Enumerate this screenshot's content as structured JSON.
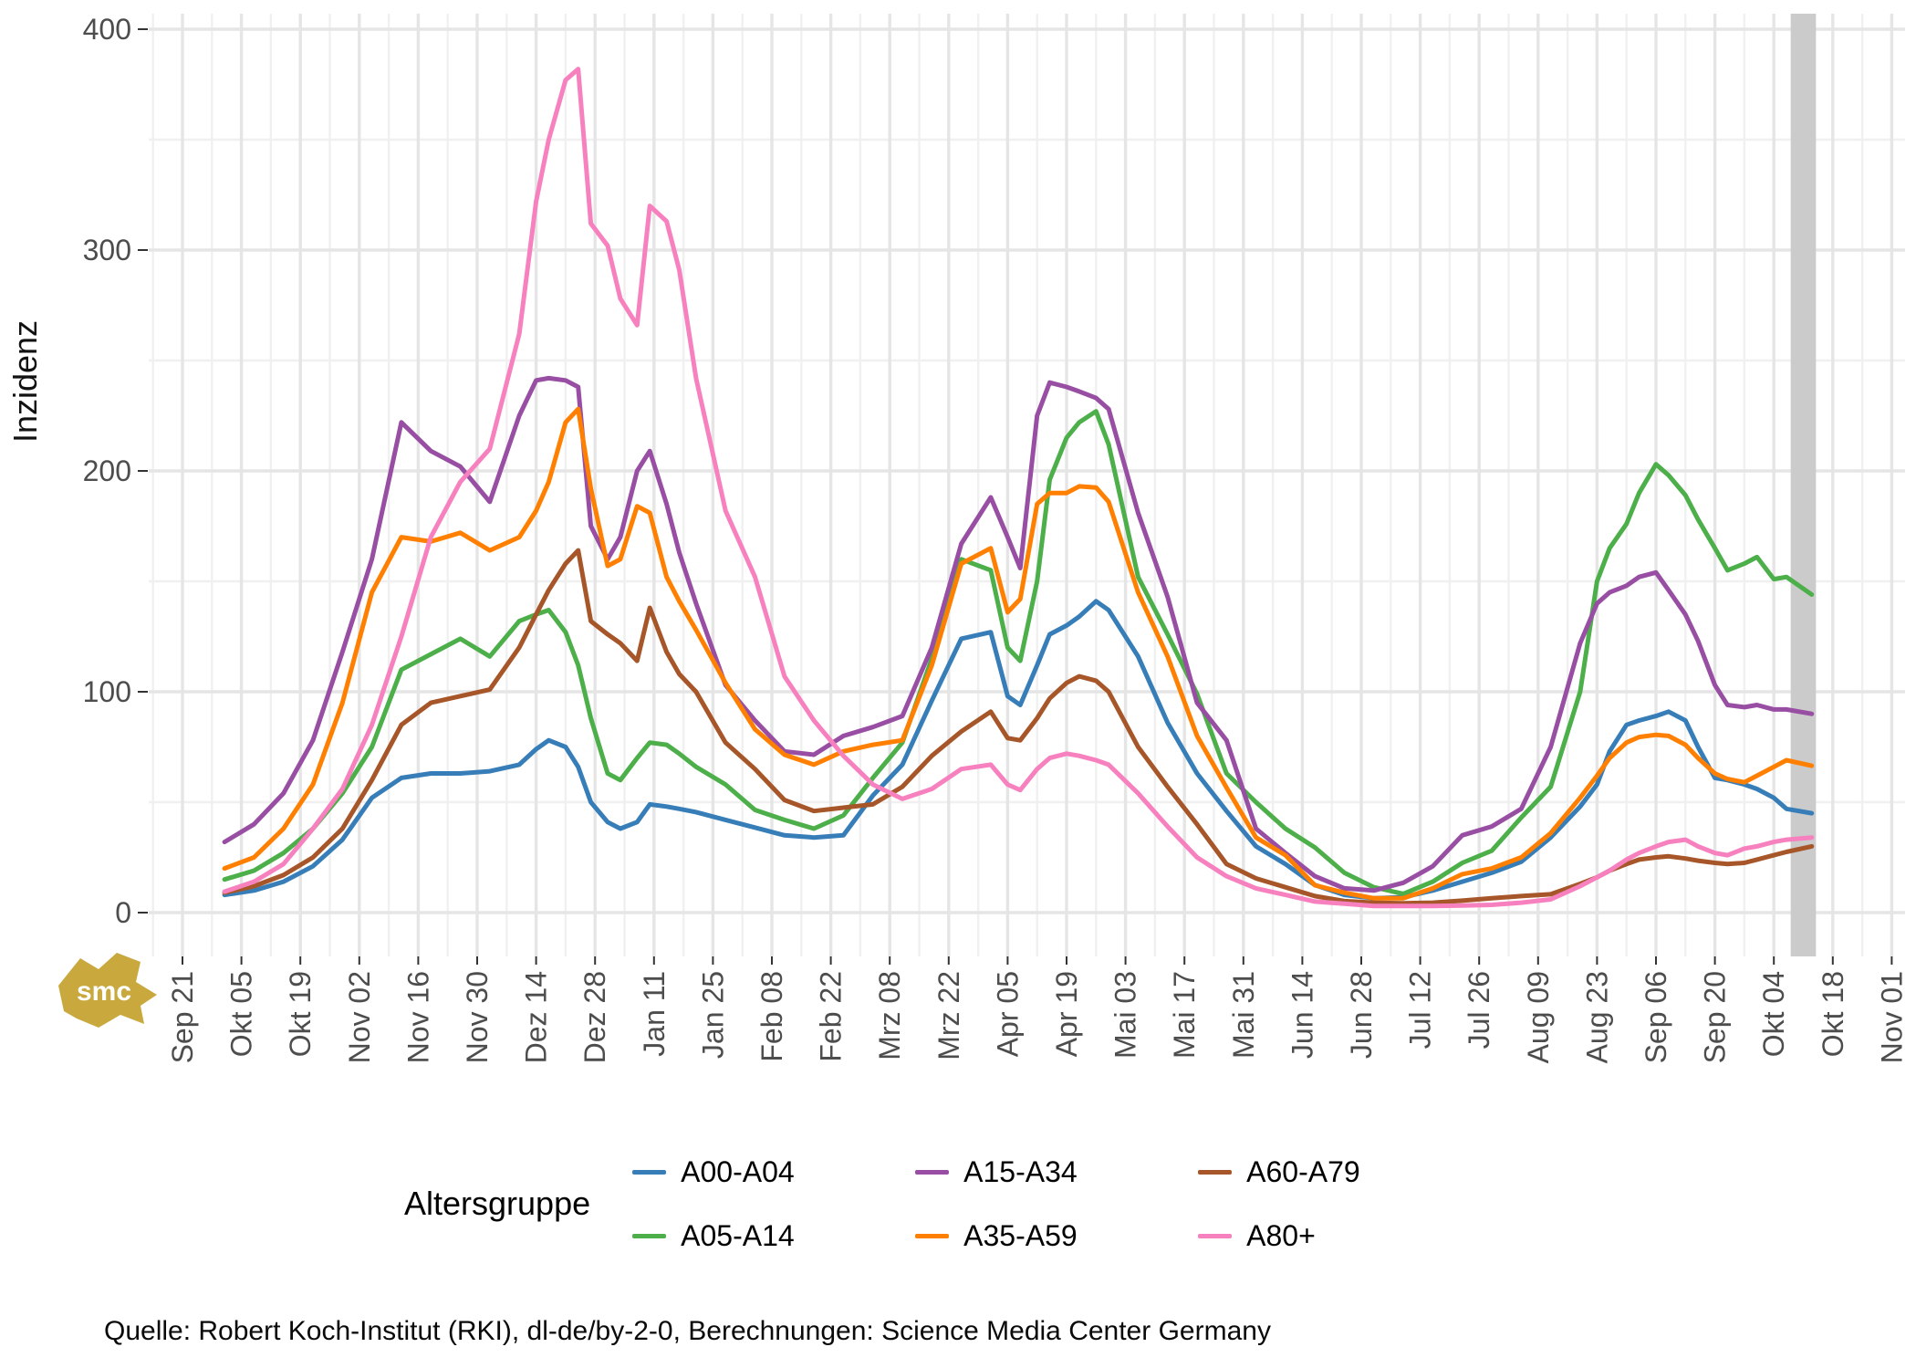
{
  "y_axis": {
    "label": "Inzidenz",
    "ticks": [
      0,
      100,
      200,
      300,
      400
    ]
  },
  "x_axis": {
    "tick_labels": [
      "Sep 21",
      "Okt 05",
      "Okt 19",
      "Nov 02",
      "Nov 16",
      "Nov 30",
      "Dez 14",
      "Dez 28",
      "Jan 11",
      "Jan 25",
      "Feb 08",
      "Feb 22",
      "Mrz 08",
      "Mrz 22",
      "Apr 05",
      "Apr 19",
      "Mai 03",
      "Mai 17",
      "Mai 31",
      "Jun 14",
      "Jun 28",
      "Jul 12",
      "Jul 26",
      "Aug 09",
      "Aug 23",
      "Sep 06",
      "Sep 20",
      "Okt 04",
      "Okt 18",
      "Nov 01"
    ]
  },
  "legend": {
    "title": "Altersgruppe",
    "items": [
      {
        "label": "A00-A04",
        "color": "#377eb8"
      },
      {
        "label": "A05-A14",
        "color": "#4daf4a"
      },
      {
        "label": "A15-A34",
        "color": "#984ea3"
      },
      {
        "label": "A35-A59",
        "color": "#ff7f00"
      },
      {
        "label": "A60-A79",
        "color": "#a65628"
      },
      {
        "label": "A80+",
        "color": "#f781bf"
      }
    ]
  },
  "source": "Quelle: Robert Koch-Institut (RKI), dl-de/by-2-0, Berechnungen: Science Media Center Germany",
  "logo_text": "smc",
  "logo_color": "#c9a93d",
  "highlight_band": {
    "start_day": 382,
    "end_day": 388,
    "color": "#cbcbcb"
  },
  "chart_data": {
    "type": "line",
    "title": "",
    "xlabel": "",
    "ylabel": "Inzidenz",
    "ylim": [
      0,
      400
    ],
    "grid": "on",
    "legend_position": "bottom",
    "x_unit": "days since Sep 21",
    "x_days": [
      10,
      17,
      24,
      31,
      38,
      45,
      52,
      59,
      66,
      73,
      80,
      84,
      87,
      91,
      94,
      97,
      101,
      104,
      108,
      111,
      115,
      118,
      122,
      129,
      136,
      143,
      150,
      157,
      164,
      171,
      178,
      185,
      192,
      196,
      199,
      203,
      206,
      210,
      213,
      217,
      220,
      227,
      234,
      241,
      248,
      255,
      262,
      269,
      276,
      283,
      290,
      297,
      304,
      311,
      318,
      325,
      332,
      336,
      339,
      343,
      346,
      350,
      353,
      357,
      360,
      364,
      367,
      371,
      374,
      378,
      381,
      387
    ],
    "x_dates": [
      "Okt 01",
      "Okt 08",
      "Okt 15",
      "Okt 22",
      "Okt 29",
      "Nov 05",
      "Nov 12",
      "Nov 19",
      "Nov 26",
      "Dez 03",
      "Dez 10",
      "Dez 14",
      "Dez 17",
      "Dez 21",
      "Dez 24",
      "Dez 27",
      "Dez 31",
      "Jan 03",
      "Jan 07",
      "Jan 10",
      "Jan 14",
      "Jan 17",
      "Jan 21",
      "Jan 28",
      "Feb 04",
      "Feb 11",
      "Feb 18",
      "Feb 25",
      "Mrz 04",
      "Mrz 11",
      "Mrz 18",
      "Mrz 25",
      "Apr 01",
      "Apr 05",
      "Apr 08",
      "Apr 12",
      "Apr 15",
      "Apr 19",
      "Apr 22",
      "Apr 26",
      "Apr 29",
      "Mai 06",
      "Mai 13",
      "Mai 20",
      "Mai 27",
      "Jun 03",
      "Jun 10",
      "Jun 17",
      "Jun 24",
      "Jul 01",
      "Jul 08",
      "Jul 15",
      "Jul 22",
      "Jul 29",
      "Aug 05",
      "Aug 12",
      "Aug 19",
      "Aug 23",
      "Aug 26",
      "Aug 30",
      "Sep 02",
      "Sep 06",
      "Sep 09",
      "Sep 13",
      "Sep 16",
      "Sep 20",
      "Sep 23",
      "Sep 27",
      "Sep 30",
      "Okt 04",
      "Okt 07",
      "Okt 13"
    ],
    "series": [
      {
        "name": "A00-A04",
        "color": "#377eb8",
        "values": [
          8,
          10,
          14,
          21,
          33,
          52,
          61,
          63,
          63,
          64,
          67,
          74,
          78,
          75,
          66,
          50,
          41,
          38,
          41,
          49,
          48,
          47,
          45.5,
          42,
          38.5,
          35,
          34,
          35,
          53,
          67,
          96,
          124,
          127,
          98,
          94,
          112,
          126,
          130,
          134,
          141,
          137,
          116,
          86,
          63,
          46,
          30,
          22,
          12.5,
          8,
          6.5,
          7,
          10,
          14,
          18,
          23,
          34,
          48,
          58,
          73,
          85,
          87,
          89,
          91,
          87,
          75,
          61,
          60,
          58,
          56,
          52,
          47,
          45
        ]
      },
      {
        "name": "A05-A14",
        "color": "#4daf4a",
        "values": [
          15,
          19,
          27,
          38,
          54,
          75,
          110,
          117,
          124,
          116,
          132,
          135,
          137,
          127,
          112,
          88,
          63,
          60,
          70,
          77,
          76,
          72,
          66,
          58,
          46.5,
          42,
          38,
          44,
          61,
          77,
          115,
          160,
          155,
          120,
          114,
          150,
          196,
          215,
          222,
          227,
          212,
          152,
          126,
          99,
          63,
          50,
          38,
          29.5,
          18,
          11.5,
          8.5,
          14,
          22.5,
          28,
          43,
          57,
          100,
          150,
          165,
          176,
          190,
          203,
          198,
          189,
          178,
          165,
          155,
          158,
          161,
          151,
          152,
          144
        ]
      },
      {
        "name": "A15-A34",
        "color": "#984ea3",
        "values": [
          32,
          40,
          54,
          78,
          118,
          160,
          222,
          209,
          202,
          186,
          225,
          241,
          242,
          241,
          238,
          175,
          160,
          170,
          200,
          209,
          185,
          163,
          140,
          103,
          87,
          73,
          71.5,
          80,
          84,
          89,
          120,
          167,
          188,
          170,
          156,
          225,
          240,
          238,
          236,
          233,
          228,
          181,
          143,
          95,
          78,
          38,
          27,
          16.5,
          11,
          10,
          13.5,
          21,
          35,
          39,
          47,
          75,
          122,
          140,
          145,
          148,
          152,
          154,
          146,
          135,
          123,
          103,
          94,
          93,
          94,
          92,
          92,
          90
        ]
      },
      {
        "name": "A35-A59",
        "color": "#ff7f00",
        "values": [
          20,
          25,
          38,
          58,
          95,
          145,
          170,
          168,
          172,
          164,
          170,
          182,
          195,
          222,
          228,
          192,
          157,
          160,
          184,
          181,
          152,
          141,
          128,
          104,
          83,
          71.5,
          67,
          73,
          76,
          78,
          112,
          158,
          165,
          136,
          142,
          185,
          190,
          190,
          193,
          192.5,
          186,
          145,
          116,
          80,
          56.6,
          34,
          26,
          12.4,
          9,
          6.5,
          6.5,
          11,
          17.4,
          20,
          25,
          36,
          52,
          62,
          70,
          77,
          79.5,
          80.5,
          80,
          76,
          70,
          63,
          60.5,
          59,
          62,
          66,
          69,
          66.5
        ]
      },
      {
        "name": "A60-A79",
        "color": "#a65628",
        "values": [
          9,
          12,
          17,
          25,
          38,
          60,
          85,
          95,
          98,
          101,
          120,
          135,
          146,
          158,
          164,
          132,
          126,
          122,
          114,
          138,
          118,
          108,
          100,
          77,
          65,
          51,
          46,
          47.5,
          49,
          57,
          71,
          82,
          91,
          79,
          78,
          88,
          97,
          104,
          107,
          105,
          100,
          75,
          57,
          40,
          22,
          15.5,
          11.5,
          7.5,
          5.2,
          4.5,
          4.2,
          4.5,
          5.4,
          6.5,
          7.5,
          8.3,
          13,
          16,
          19,
          22,
          24,
          25,
          25.5,
          24.5,
          23.5,
          22.5,
          22,
          22.5,
          24,
          26,
          27.5,
          30
        ]
      },
      {
        "name": "A80+",
        "color": "#f781bf",
        "values": [
          9.5,
          14,
          22,
          38,
          56,
          85,
          125,
          170,
          195,
          210,
          262,
          322,
          350,
          377,
          382,
          312,
          302,
          278,
          266,
          320,
          313,
          291,
          242,
          182,
          152,
          107,
          87,
          71,
          58,
          51.5,
          56,
          65,
          67,
          58,
          55.5,
          65,
          70,
          72,
          71,
          69,
          67,
          54,
          39,
          25,
          16.5,
          11,
          8,
          5,
          4,
          3,
          3,
          3,
          3.2,
          3.5,
          4.5,
          6,
          12,
          16,
          19,
          24,
          27,
          30,
          32,
          33,
          30,
          27,
          26,
          29,
          30,
          32,
          33,
          34
        ]
      }
    ]
  }
}
